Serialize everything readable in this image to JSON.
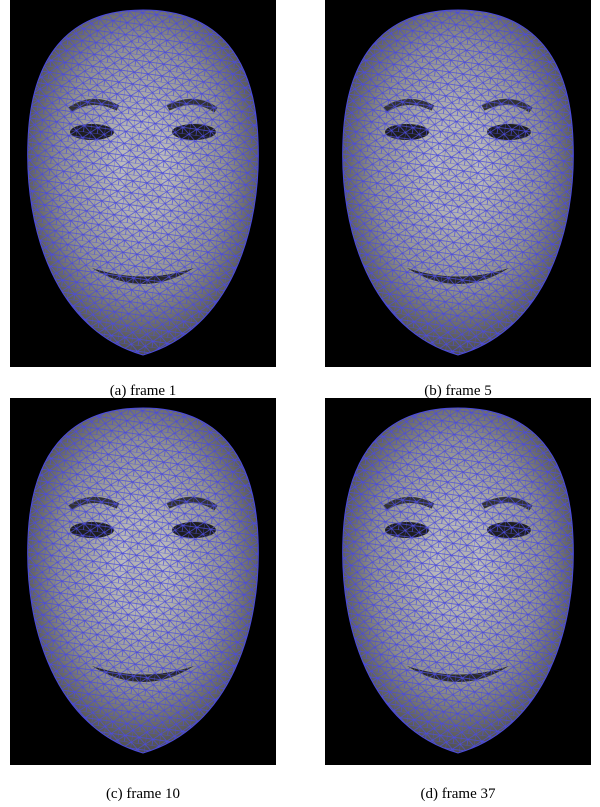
{
  "figure": {
    "panels": [
      {
        "caption": "(a) frame 1"
      },
      {
        "caption": "(b) frame 5"
      },
      {
        "caption": "(c) frame 10"
      },
      {
        "caption": "(d) frame 37"
      }
    ]
  }
}
